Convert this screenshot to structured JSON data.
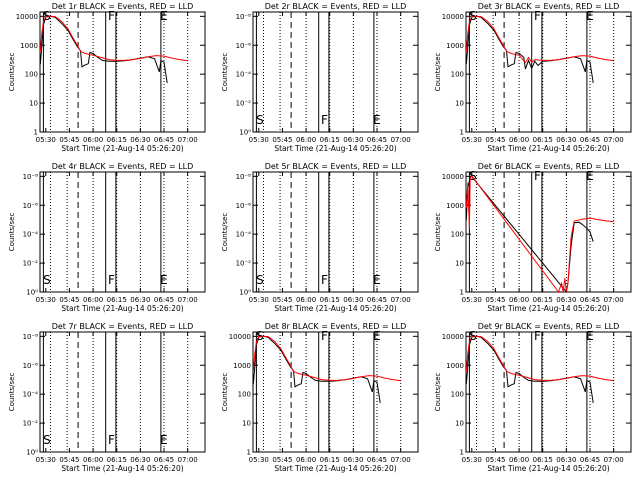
{
  "figure": {
    "x_tick_labels": [
      "05:30",
      "05:45",
      "06:00",
      "06:15",
      "06:30",
      "06:45",
      "07:00"
    ],
    "xlabel": "Start Time (21-Aug-14 05:26:20)",
    "ylabel": "Counts/sec",
    "colors": {
      "events": "#000000",
      "lld": "#ff0000",
      "axes": "#000000"
    },
    "legend_text": "BLACK = Events, RED = LLD"
  },
  "chart_data": [
    {
      "type": "line",
      "title": "Det 1r BLACK = Events, RED = LLD",
      "y_tick_labels": [
        "1",
        "10",
        "100",
        "1000",
        "10000"
      ],
      "y_scale": "log",
      "markers": [
        "S",
        "F",
        "E"
      ],
      "series": [
        {
          "name": "Events",
          "color": "#000000",
          "x": [
            "05:26:30",
            "05:27:30",
            "05:28:30",
            "05:30",
            "05:33",
            "05:36",
            "05:40",
            "05:44",
            "05:47",
            "05:50",
            "05:52",
            "05:53",
            "05:55",
            "05:57",
            "05:58",
            "06:00",
            "06:03",
            "06:06",
            "06:10",
            "06:15",
            "06:20",
            "06:25",
            "06:30",
            "06:35",
            "06:39",
            "06:42",
            "06:43",
            "06:45",
            "06:47"
          ],
          "y": [
            220,
            900,
            5000,
            9500,
            10000,
            9200,
            5800,
            3300,
            1700,
            900,
            650,
            180,
            210,
            230,
            560,
            520,
            380,
            300,
            280,
            280,
            290,
            320,
            360,
            400,
            340,
            120,
            300,
            260,
            50
          ]
        },
        {
          "name": "LLD",
          "color": "#ff0000",
          "x": [
            "05:26:30",
            "05:27:30",
            "05:28:30",
            "05:30",
            "05:33",
            "05:36",
            "05:40",
            "05:44",
            "05:47",
            "05:50",
            "05:52",
            "05:55",
            "06:00",
            "06:05",
            "06:10",
            "06:15",
            "06:20",
            "06:25",
            "06:30",
            "06:35",
            "06:40",
            "06:45",
            "06:50",
            "06:55",
            "07:00"
          ],
          "y": [
            600,
            2500,
            6500,
            10000,
            10000,
            9800,
            6800,
            3700,
            1900,
            1000,
            620,
            520,
            450,
            380,
            320,
            300,
            300,
            320,
            350,
            400,
            440,
            420,
            360,
            320,
            290
          ]
        }
      ]
    },
    {
      "type": "line",
      "title": "Det 2r BLACK = Events, RED = LLD",
      "y_tick_labels": [
        "10⁰",
        "10⁻²",
        "10⁻⁴",
        "10⁻⁶",
        "10⁻⁸"
      ],
      "y_scale": "log",
      "markers": [
        "S",
        "F",
        "E"
      ],
      "series": []
    },
    {
      "type": "line",
      "title": "Det 3r BLACK = Events, RED = LLD",
      "y_tick_labels": [
        "1",
        "10",
        "100",
        "1000",
        "10000"
      ],
      "y_scale": "log",
      "markers": [
        "S",
        "F",
        "E"
      ],
      "series": [
        {
          "name": "Events",
          "color": "#000000",
          "x": [
            "05:26:30",
            "05:27:30",
            "05:28:30",
            "05:30",
            "05:33",
            "05:36",
            "05:40",
            "05:44",
            "05:47",
            "05:50",
            "05:52",
            "05:53",
            "05:55",
            "05:57",
            "05:58",
            "06:00",
            "06:03",
            "06:04",
            "06:06",
            "06:08",
            "06:10",
            "06:12",
            "06:15",
            "06:20",
            "06:25",
            "06:30",
            "06:35",
            "06:39",
            "06:42",
            "06:43",
            "06:45",
            "06:47"
          ],
          "y": [
            220,
            900,
            5000,
            9500,
            10000,
            9200,
            5800,
            3300,
            1700,
            900,
            650,
            180,
            210,
            230,
            560,
            520,
            380,
            150,
            300,
            160,
            280,
            200,
            280,
            290,
            320,
            360,
            400,
            340,
            120,
            300,
            260,
            50
          ]
        },
        {
          "name": "LLD",
          "color": "#ff0000",
          "x": [
            "05:26:30",
            "05:27:30",
            "05:28:30",
            "05:30",
            "05:33",
            "05:36",
            "05:40",
            "05:44",
            "05:47",
            "05:50",
            "05:52",
            "05:55",
            "06:00",
            "06:04",
            "06:06",
            "06:08",
            "06:10",
            "06:15",
            "06:20",
            "06:25",
            "06:30",
            "06:35",
            "06:40",
            "06:45",
            "06:50",
            "06:55",
            "07:00"
          ],
          "y": [
            600,
            2500,
            6500,
            10000,
            10000,
            9800,
            6800,
            3700,
            1900,
            1000,
            620,
            520,
            450,
            250,
            380,
            260,
            320,
            300,
            300,
            320,
            350,
            400,
            440,
            420,
            360,
            320,
            290
          ]
        }
      ]
    },
    {
      "type": "line",
      "title": "Det 4r BLACK = Events, RED = LLD",
      "y_tick_labels": [
        "10⁰",
        "10⁻²",
        "10⁻⁴",
        "10⁻⁶",
        "10⁻⁸"
      ],
      "y_scale": "log",
      "markers": [
        "S",
        "F",
        "E"
      ],
      "series": []
    },
    {
      "type": "line",
      "title": "Det 5r BLACK = Events, RED = LLD",
      "y_tick_labels": [
        "10⁰",
        "10⁻²",
        "10⁻⁴",
        "10⁻⁶",
        "10⁻⁸"
      ],
      "y_scale": "log",
      "markers": [
        "S",
        "F",
        "E"
      ],
      "series": []
    },
    {
      "type": "line",
      "title": "Det 6r BLACK = Events, RED = LLD",
      "y_tick_labels": [
        "1",
        "10",
        "100",
        "1000",
        "10000"
      ],
      "y_scale": "log",
      "markers": [
        "S",
        "F",
        "E"
      ],
      "series": [
        {
          "name": "Events",
          "color": "#000000",
          "x": [
            "05:26:30",
            "05:27:30",
            "05:28:30",
            "05:29:30",
            "05:30",
            "05:30:30",
            "06:30",
            "06:31",
            "06:33",
            "06:35",
            "06:38",
            "06:40",
            "06:43",
            "06:45",
            "06:47"
          ],
          "y": [
            300,
            4000,
            7000,
            10000,
            10000,
            9000,
            1,
            2,
            40,
            250,
            260,
            220,
            160,
            120,
            55
          ]
        },
        {
          "name": "LLD",
          "color": "#ff0000",
          "x": [
            "05:26:30",
            "05:27:30",
            "05:28:30",
            "05:29:00",
            "05:29:30",
            "05:30",
            "05:30:30",
            "06:25",
            "06:27",
            "06:28",
            "06:29",
            "06:30",
            "06:31",
            "06:33",
            "06:35",
            "06:40",
            "06:45",
            "06:50",
            "06:55",
            "07:00"
          ],
          "y": [
            800,
            6000,
            150,
            9000,
            10000,
            10000,
            9500,
            1,
            2,
            1,
            3,
            1,
            2,
            80,
            280,
            330,
            360,
            320,
            290,
            270
          ]
        }
      ]
    },
    {
      "type": "line",
      "title": "Det 7r BLACK = Events, RED = LLD",
      "y_tick_labels": [
        "10⁰",
        "10⁻²",
        "10⁻⁴",
        "10⁻⁶",
        "10⁻⁸"
      ],
      "y_scale": "log",
      "markers": [
        "S",
        "F",
        "E"
      ],
      "series": []
    },
    {
      "type": "line",
      "title": "Det 8r BLACK = Events, RED = LLD",
      "y_tick_labels": [
        "1",
        "10",
        "100",
        "1000",
        "10000"
      ],
      "y_scale": "log",
      "markers": [
        "S",
        "F",
        "E"
      ],
      "series": [
        {
          "name": "Events",
          "color": "#000000",
          "x": [
            "05:26:30",
            "05:27:30",
            "05:28:30",
            "05:30",
            "05:33",
            "05:36",
            "05:40",
            "05:44",
            "05:47",
            "05:50",
            "05:52",
            "05:53",
            "05:55",
            "05:57",
            "05:58",
            "06:00",
            "06:03",
            "06:06",
            "06:10",
            "06:15",
            "06:20",
            "06:25",
            "06:30",
            "06:35",
            "06:39",
            "06:42",
            "06:43",
            "06:45",
            "06:47"
          ],
          "y": [
            220,
            900,
            5000,
            9500,
            10000,
            9200,
            5800,
            3300,
            1700,
            900,
            650,
            180,
            210,
            230,
            560,
            520,
            380,
            300,
            280,
            280,
            290,
            320,
            360,
            400,
            340,
            120,
            300,
            260,
            50
          ]
        },
        {
          "name": "LLD",
          "color": "#ff0000",
          "x": [
            "05:26:30",
            "05:27:30",
            "05:28:30",
            "05:30",
            "05:33",
            "05:36",
            "05:40",
            "05:44",
            "05:47",
            "05:50",
            "05:52",
            "05:55",
            "06:00",
            "06:05",
            "06:10",
            "06:15",
            "06:20",
            "06:25",
            "06:30",
            "06:35",
            "06:40",
            "06:45",
            "06:50",
            "06:55",
            "07:00"
          ],
          "y": [
            600,
            2500,
            6500,
            10000,
            10000,
            9800,
            6800,
            3700,
            1900,
            1000,
            620,
            520,
            450,
            380,
            320,
            300,
            300,
            320,
            350,
            400,
            440,
            420,
            360,
            320,
            290
          ]
        }
      ]
    },
    {
      "type": "line",
      "title": "Det 9r BLACK = Events, RED = LLD",
      "y_tick_labels": [
        "1",
        "10",
        "100",
        "1000",
        "10000"
      ],
      "y_scale": "log",
      "markers": [
        "S",
        "F",
        "E"
      ],
      "series": [
        {
          "name": "Events",
          "color": "#000000",
          "x": [
            "05:26:30",
            "05:27:30",
            "05:28:30",
            "05:30",
            "05:33",
            "05:36",
            "05:40",
            "05:44",
            "05:47",
            "05:50",
            "05:52",
            "05:53",
            "05:55",
            "05:57",
            "05:58",
            "06:00",
            "06:03",
            "06:06",
            "06:10",
            "06:15",
            "06:20",
            "06:25",
            "06:30",
            "06:35",
            "06:39",
            "06:42",
            "06:43",
            "06:45",
            "06:47"
          ],
          "y": [
            220,
            900,
            5000,
            9500,
            10000,
            9200,
            5800,
            3300,
            1700,
            900,
            650,
            180,
            210,
            230,
            560,
            520,
            380,
            300,
            280,
            280,
            290,
            320,
            360,
            400,
            340,
            120,
            300,
            260,
            50
          ]
        },
        {
          "name": "LLD",
          "color": "#ff0000",
          "x": [
            "05:26:30",
            "05:27:30",
            "05:28:30",
            "05:30",
            "05:33",
            "05:36",
            "05:40",
            "05:44",
            "05:47",
            "05:50",
            "05:52",
            "05:55",
            "06:00",
            "06:05",
            "06:10",
            "06:15",
            "06:20",
            "06:25",
            "06:30",
            "06:35",
            "06:40",
            "06:45",
            "06:50",
            "06:55",
            "07:00"
          ],
          "y": [
            600,
            2500,
            6500,
            10000,
            10000,
            9800,
            6800,
            3700,
            1900,
            1000,
            620,
            520,
            450,
            380,
            320,
            300,
            300,
            320,
            350,
            400,
            440,
            420,
            360,
            320,
            290
          ]
        }
      ]
    }
  ]
}
